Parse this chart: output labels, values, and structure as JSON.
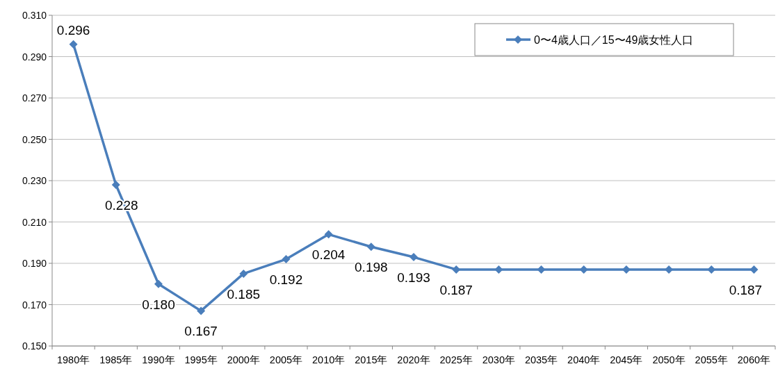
{
  "chart_data": {
    "type": "line",
    "categories": [
      "1980年",
      "1985年",
      "1990年",
      "1995年",
      "2000年",
      "2005年",
      "2010年",
      "2015年",
      "2020年",
      "2025年",
      "2030年",
      "2035年",
      "2040年",
      "2045年",
      "2050年",
      "2055年",
      "2060年"
    ],
    "series": [
      {
        "name": "0〜4歳人口／15〜49歳女性人口",
        "color": "#4a7ebb",
        "values": [
          0.296,
          0.228,
          0.18,
          0.167,
          0.185,
          0.192,
          0.204,
          0.198,
          0.193,
          0.187,
          0.187,
          0.187,
          0.187,
          0.187,
          0.187,
          0.187,
          0.187
        ],
        "value_labels": [
          "0.296",
          "0.228",
          "0.180",
          "0.167",
          "0.185",
          "0.192",
          "0.204",
          "0.198",
          "0.193",
          "0.187",
          null,
          null,
          null,
          null,
          null,
          null,
          "0.187"
        ]
      }
    ],
    "ylim": [
      0.15,
      0.31
    ],
    "yticks": [
      {
        "value": 0.15,
        "label": "0.150"
      },
      {
        "value": 0.17,
        "label": "0.170"
      },
      {
        "value": 0.19,
        "label": "0.190"
      },
      {
        "value": 0.21,
        "label": "0.210"
      },
      {
        "value": 0.23,
        "label": "0.230"
      },
      {
        "value": 0.25,
        "label": "0.250"
      },
      {
        "value": 0.27,
        "label": "0.270"
      },
      {
        "value": 0.29,
        "label": "0.290"
      },
      {
        "value": 0.31,
        "label": "0.310"
      }
    ],
    "grid": "y",
    "legend": "top right",
    "marker": "diamond",
    "line_style": "solid"
  }
}
